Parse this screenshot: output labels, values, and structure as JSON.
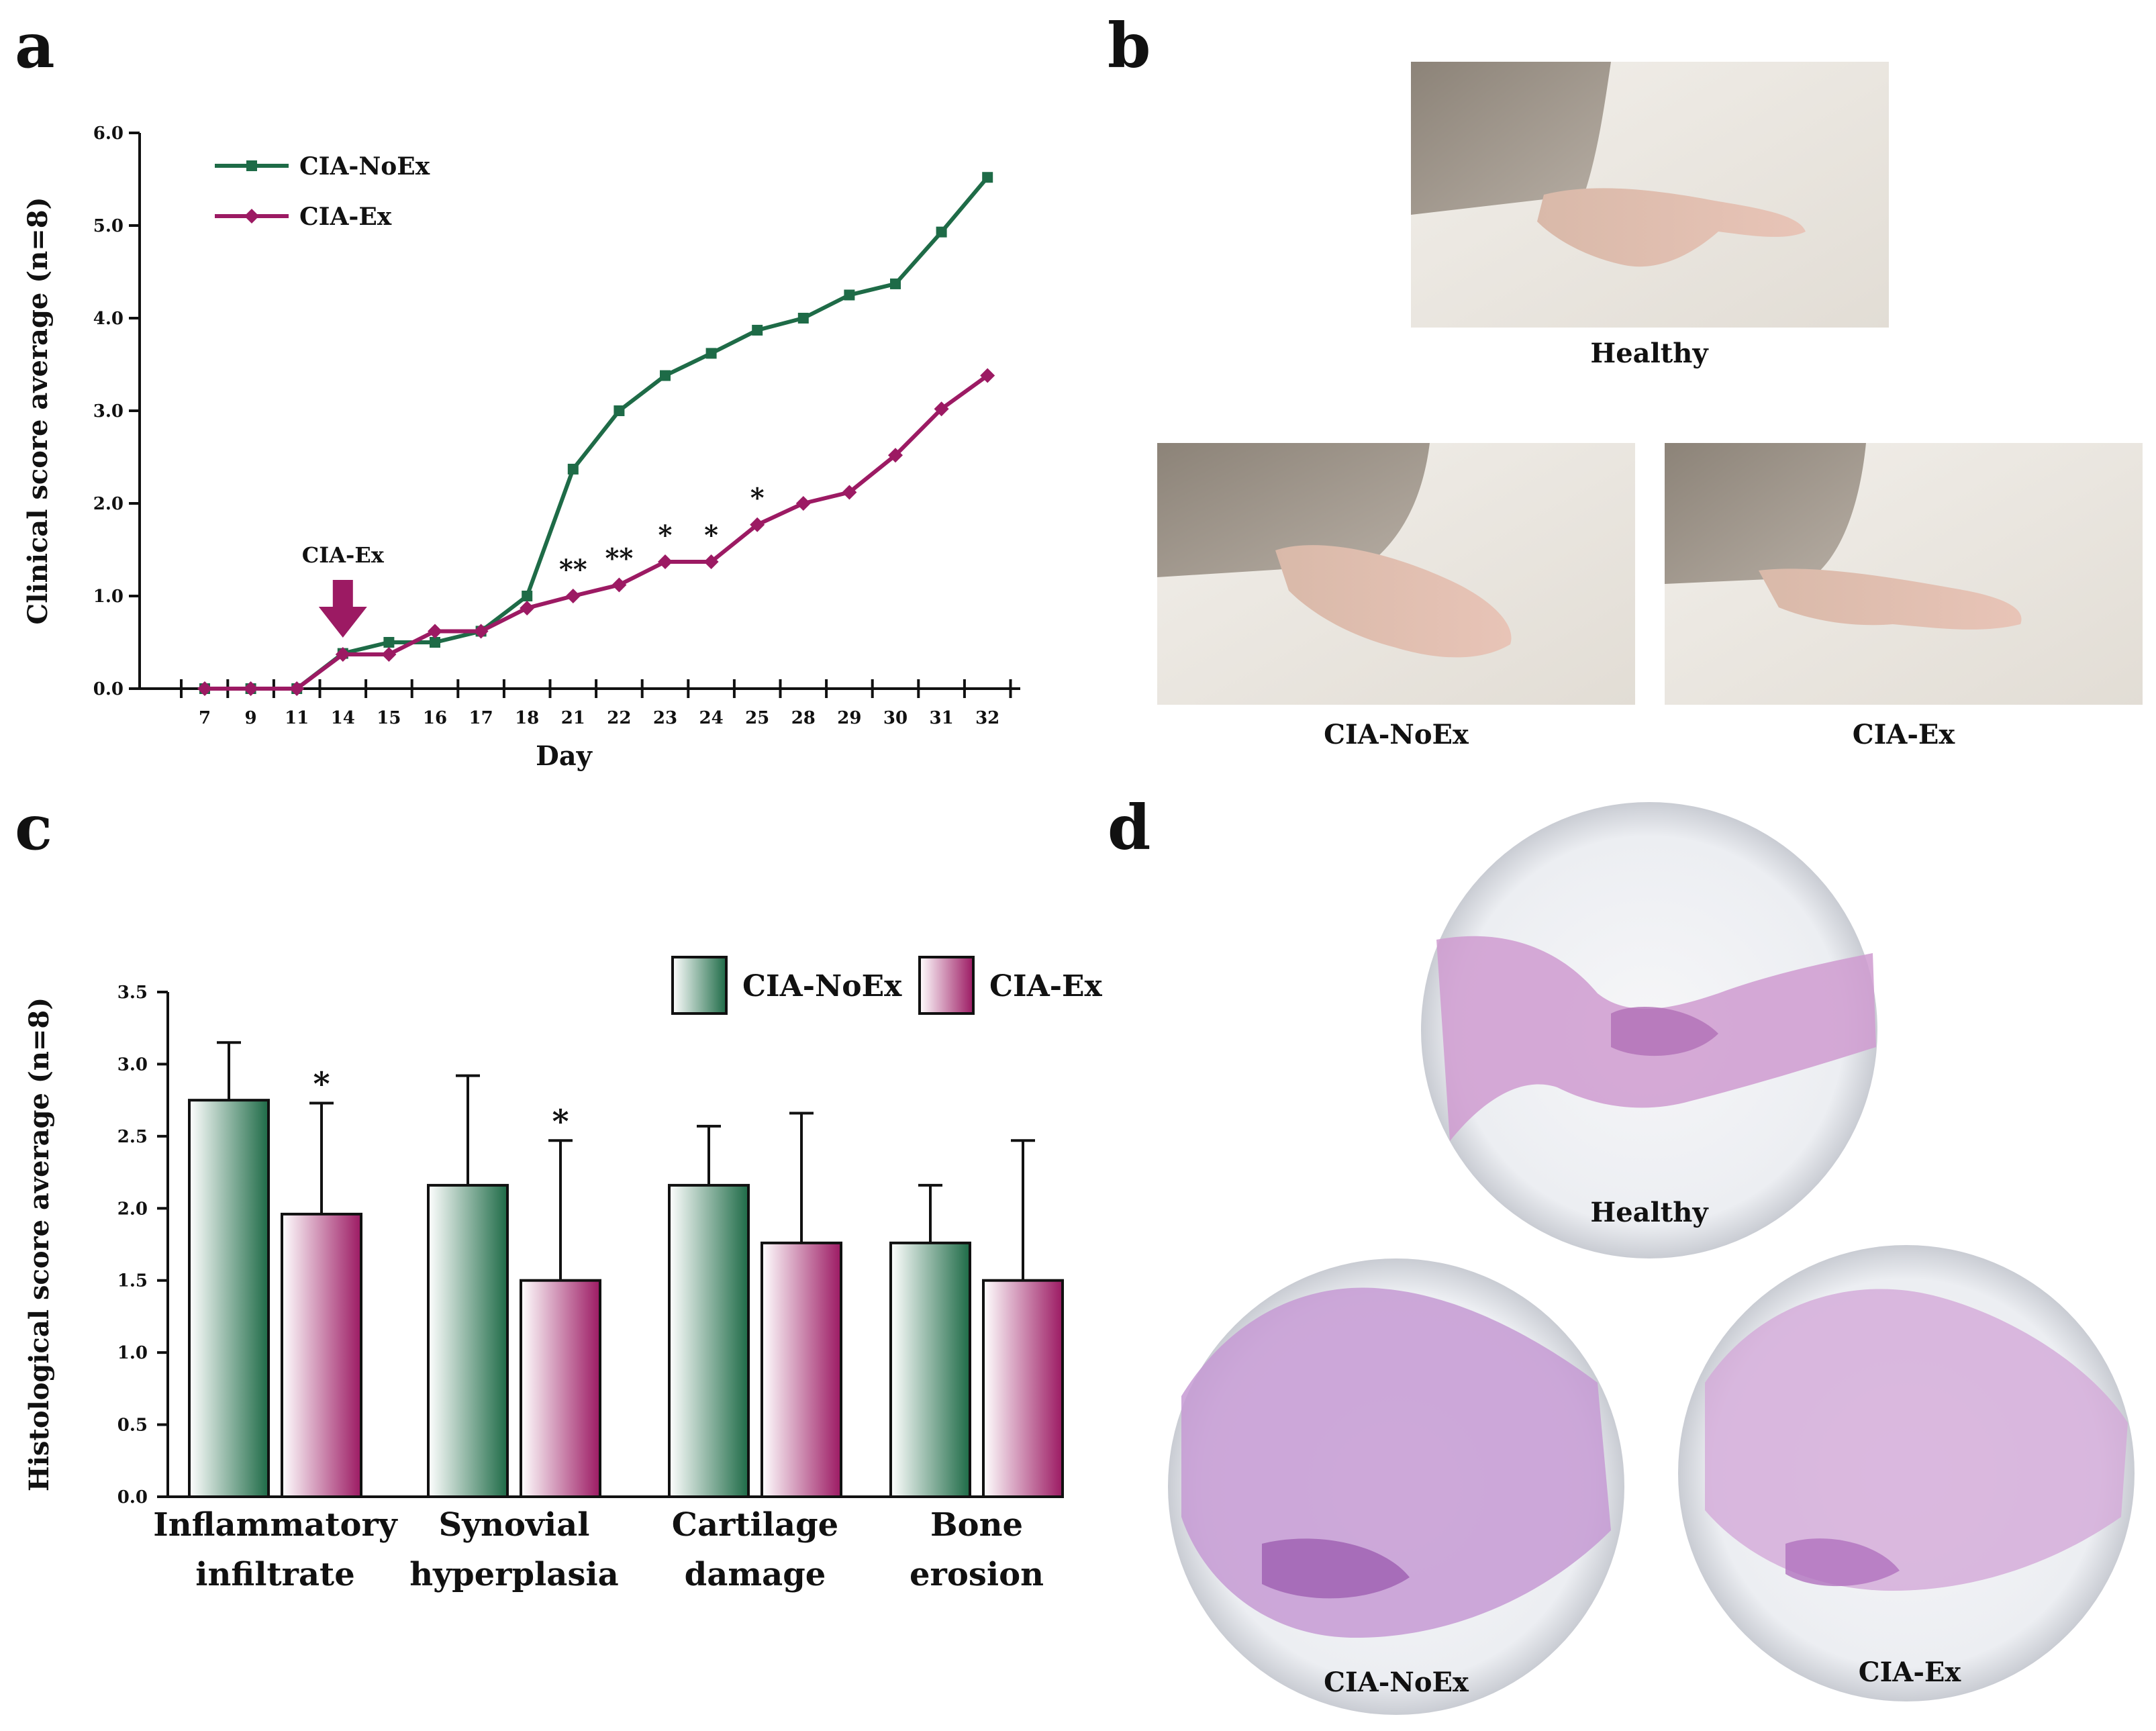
{
  "panel_letters": {
    "a": "a",
    "b": "b",
    "c": "c",
    "d": "d"
  },
  "colors": {
    "noex": "#1e6b47",
    "ex": "#9c1a63",
    "noex_light": "#ffffff",
    "ex_light": "#ffffff"
  },
  "panel_b": {
    "captions": {
      "healthy": "Healthy",
      "noex": "CIA-NoEx",
      "ex": "CIA-Ex"
    }
  },
  "panel_d": {
    "captions": {
      "healthy": "Healthy",
      "noex": "CIA-NoEx",
      "ex": "CIA-Ex"
    }
  },
  "chart_data": [
    {
      "type": "line",
      "panel": "a",
      "title": "",
      "xlabel": "Day",
      "ylabel": "Clinical score average (n=8)",
      "ylim": [
        0,
        6
      ],
      "yticks": [
        "0.0",
        "1.0",
        "2.0",
        "3.0",
        "4.0",
        "5.0",
        "6.0"
      ],
      "x": [
        "7",
        "9",
        "11",
        "14",
        "15",
        "16",
        "17",
        "18",
        "21",
        "22",
        "23",
        "24",
        "25",
        "28",
        "29",
        "30",
        "31",
        "32"
      ],
      "series": [
        {
          "name": "CIA-NoEx",
          "marker": "square",
          "values": [
            0.0,
            0.0,
            0.0,
            0.38,
            0.5,
            0.5,
            0.62,
            1.0,
            2.37,
            3.0,
            3.38,
            3.62,
            3.87,
            4.0,
            4.25,
            4.37,
            4.93,
            5.52
          ]
        },
        {
          "name": "CIA-Ex",
          "marker": "diamond",
          "values": [
            0.0,
            0.0,
            0.0,
            0.37,
            0.37,
            0.62,
            0.62,
            0.87,
            1.0,
            1.12,
            1.37,
            1.37,
            1.77,
            2.0,
            2.12,
            2.52,
            3.02,
            3.38
          ]
        }
      ],
      "significance": [
        {
          "x": "21",
          "label": "**"
        },
        {
          "x": "22",
          "label": "**"
        },
        {
          "x": "23",
          "label": "*"
        },
        {
          "x": "24",
          "label": "*"
        },
        {
          "x": "25",
          "label": "*"
        }
      ],
      "annotation": {
        "label": "CIA-Ex",
        "x": "14"
      },
      "legend_position": "top-left"
    },
    {
      "type": "bar",
      "panel": "c",
      "title": "",
      "xlabel": "",
      "ylabel": "Histological score average (n=8)",
      "ylim": [
        0,
        3.5
      ],
      "yticks": [
        "0.0",
        "0.5",
        "1.0",
        "1.5",
        "2.0",
        "2.5",
        "3.0",
        "3.5"
      ],
      "categories": [
        [
          "Inflammatory",
          "infiltrate"
        ],
        [
          "Synovial",
          "hyperplasia"
        ],
        [
          "Cartilage",
          "damage"
        ],
        [
          "Bone",
          "erosion"
        ]
      ],
      "series": [
        {
          "name": "CIA-NoEx",
          "values": [
            2.75,
            2.16,
            2.16,
            1.76
          ],
          "errors": [
            0.4,
            0.76,
            0.41,
            0.4
          ]
        },
        {
          "name": "CIA-Ex",
          "values": [
            1.96,
            1.5,
            1.76,
            1.5
          ],
          "errors": [
            0.77,
            0.97,
            0.9,
            0.97
          ]
        }
      ],
      "significance": [
        {
          "category": 0,
          "series": "CIA-Ex",
          "label": "*"
        },
        {
          "category": 1,
          "series": "CIA-Ex",
          "label": "*"
        }
      ],
      "legend_position": "top-right"
    }
  ]
}
